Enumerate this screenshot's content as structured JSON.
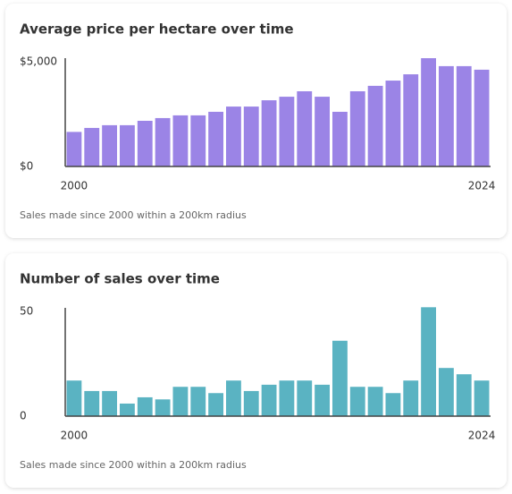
{
  "chart_data": [
    {
      "type": "bar",
      "title": "Average price per hectare over time",
      "note": "Sales made since 2000 within a 200km radius",
      "categories": [
        "2000",
        null,
        null,
        null,
        null,
        null,
        null,
        null,
        null,
        null,
        null,
        null,
        null,
        null,
        null,
        null,
        null,
        null,
        null,
        null,
        null,
        null,
        null,
        "2024"
      ],
      "values": [
        1650,
        1840,
        1970,
        1970,
        2180,
        2310,
        2440,
        2440,
        2610,
        2860,
        2860,
        3160,
        3330,
        3590,
        3330,
        2610,
        3590,
        3850,
        4100,
        4400,
        5170,
        4790,
        4790,
        4620
      ],
      "color": "#9b84e6",
      "ylim": [
        0,
        5000
      ],
      "yticks": [
        {
          "value": 0,
          "label": "$0"
        },
        {
          "value": 5000,
          "label": "$5,000"
        }
      ]
    },
    {
      "type": "bar",
      "title": "Number of sales over time",
      "note": "Sales made since 2000 within a 200km radius",
      "categories": [
        "2000",
        null,
        null,
        null,
        null,
        null,
        null,
        null,
        null,
        null,
        null,
        null,
        null,
        null,
        null,
        null,
        null,
        null,
        null,
        null,
        null,
        null,
        null,
        "2024"
      ],
      "values": [
        17,
        12,
        12,
        6,
        9,
        8,
        14,
        14,
        11,
        17,
        12,
        15,
        17,
        17,
        15,
        36,
        14,
        14,
        11,
        17,
        52,
        23,
        20,
        17
      ],
      "color": "#5ab3c2",
      "ylim": [
        0,
        50
      ],
      "yticks": [
        0,
        50
      ]
    }
  ]
}
